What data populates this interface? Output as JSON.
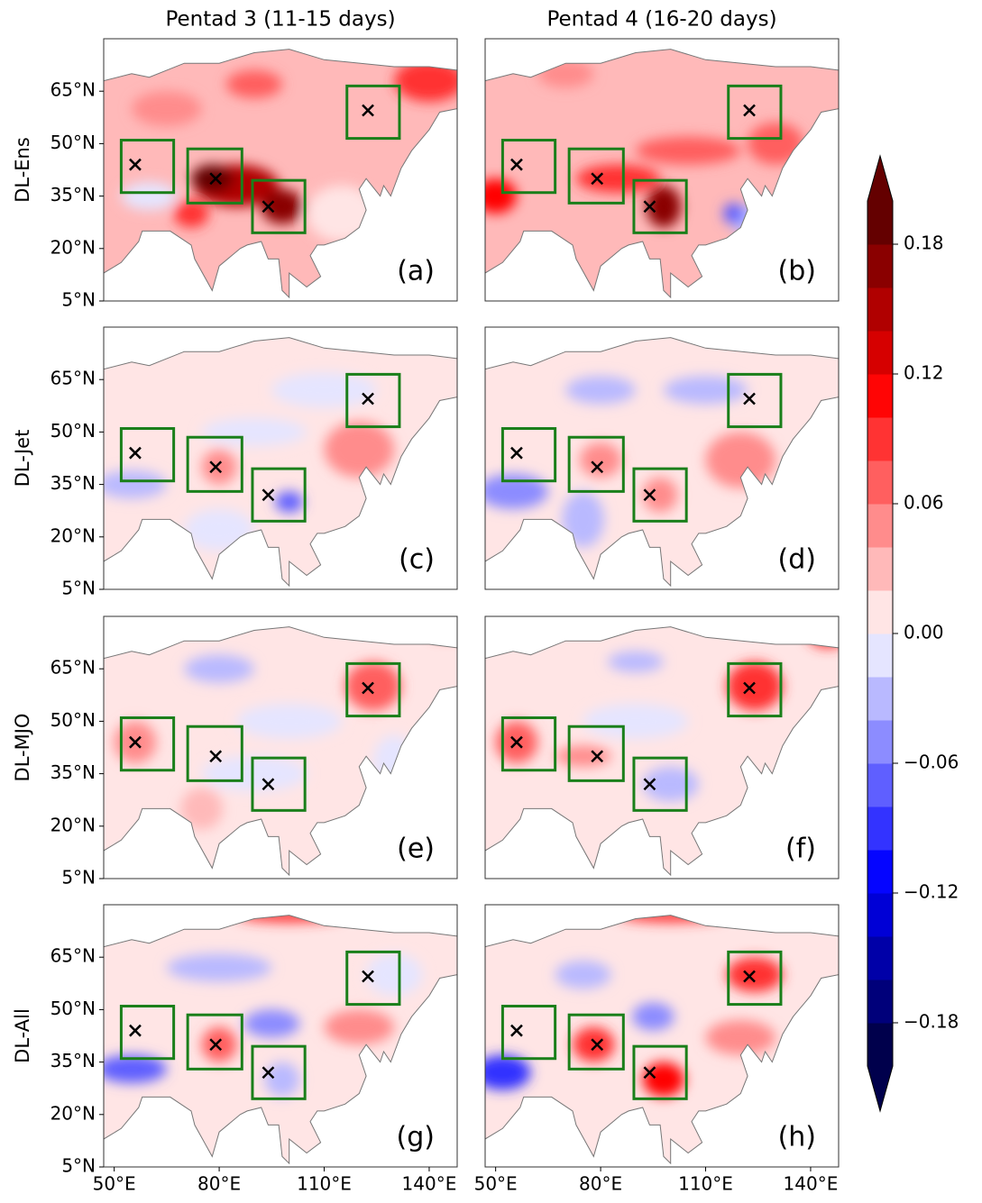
{
  "column_titles": [
    "Pentad 3 (11-15 days)",
    "Pentad 4 (16-20 days)"
  ],
  "row_labels": [
    "DL-Ens",
    "DL-Jet",
    "DL-MJO",
    "DL-All"
  ],
  "panels": [
    {
      "label": "(a)"
    },
    {
      "label": "(b)"
    },
    {
      "label": "(c)"
    },
    {
      "label": "(d)"
    },
    {
      "label": "(e)"
    },
    {
      "label": "(f)"
    },
    {
      "label": "(g)"
    },
    {
      "label": "(h)"
    }
  ],
  "map": {
    "xlim": [
      47,
      148
    ],
    "ylim": [
      5,
      80
    ],
    "xticks": [
      {
        "value": 50,
        "label": "50°E"
      },
      {
        "value": 80,
        "label": "80°E"
      },
      {
        "value": 110,
        "label": "110°E"
      },
      {
        "value": 140,
        "label": "140°E"
      }
    ],
    "yticks": [
      {
        "value": 5,
        "label": "5°N"
      },
      {
        "value": 20,
        "label": "20°N"
      },
      {
        "value": 35,
        "label": "35°N"
      },
      {
        "value": 50,
        "label": "50°N"
      },
      {
        "value": 65,
        "label": "65°N"
      }
    ]
  },
  "regions": [
    {
      "lon": [
        52,
        67
      ],
      "lat": [
        36,
        51
      ],
      "center": [
        56,
        44
      ]
    },
    {
      "lon": [
        71,
        86.5
      ],
      "lat": [
        33,
        48.5
      ],
      "center": [
        79,
        40
      ]
    },
    {
      "lon": [
        89.5,
        104.5
      ],
      "lat": [
        24.5,
        39.5
      ],
      "center": [
        94,
        32
      ]
    },
    {
      "lon": [
        116.5,
        131.5
      ],
      "lat": [
        51.5,
        66.5
      ],
      "center": [
        122.5,
        59.5
      ]
    }
  ],
  "colorbar": {
    "lim": [
      -0.2,
      0.2
    ],
    "extend": "both",
    "ticks": [
      {
        "value": -0.18,
        "label": "−0.18"
      },
      {
        "value": -0.12,
        "label": "−0.12"
      },
      {
        "value": -0.06,
        "label": "−0.06"
      },
      {
        "value": 0,
        "label": "0.00"
      },
      0.06,
      0.12,
      0.18
    ],
    "colors": [
      "#00004c",
      "#00007a",
      "#0000a8",
      "#0000d6",
      "#0505ff",
      "#3333ff",
      "#5f5fff",
      "#8c8cff",
      "#b9b9ff",
      "#e5e5ff",
      "#ffe5e5",
      "#ffb9b9",
      "#ff8c8c",
      "#ff5f5f",
      "#ff3333",
      "#ff0505",
      "#d60000",
      "#b00000",
      "#8a0000",
      "#640000"
    ]
  }
}
